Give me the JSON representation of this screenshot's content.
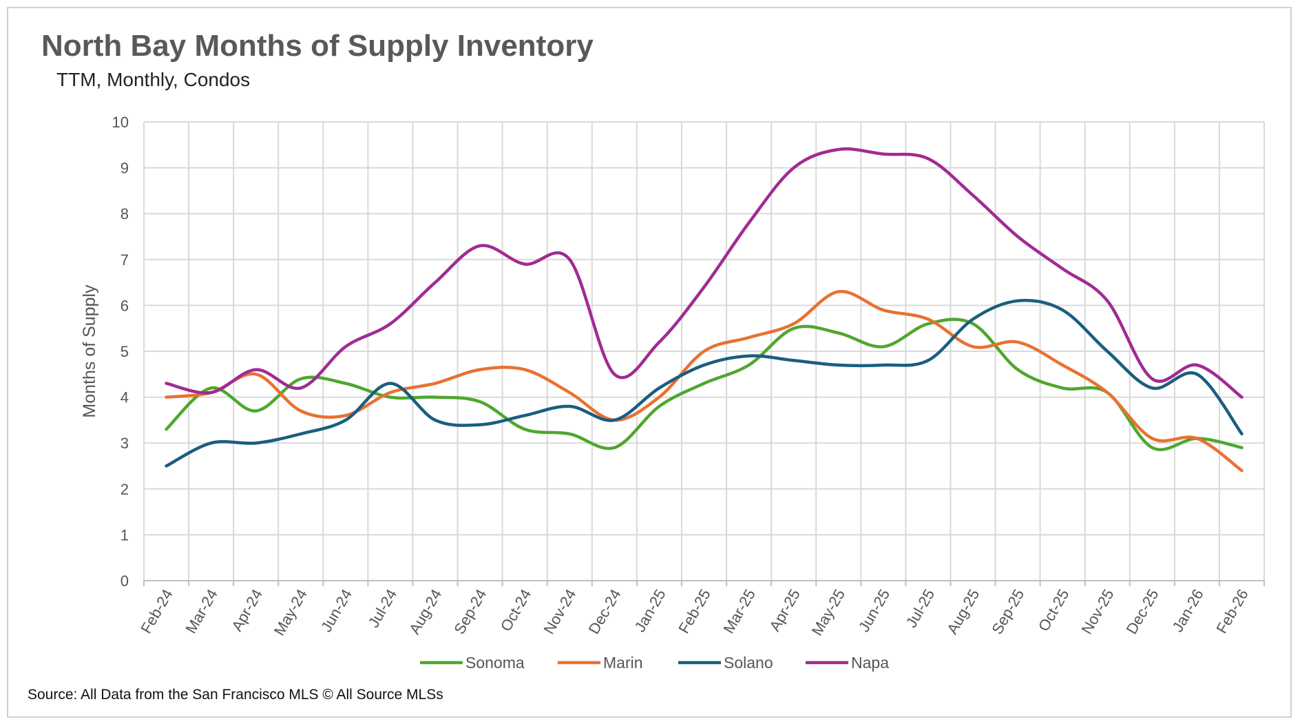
{
  "title": "North Bay Months of Supply Inventory",
  "subtitle": "TTM, Monthly, Condos",
  "source": "Source: All Data from the San Francisco MLS © All Source MLSs",
  "chart_data": {
    "type": "line",
    "ylabel": "Months of Supply",
    "ylim": [
      0,
      10
    ],
    "yticks": [
      "0",
      "1",
      "2",
      "3",
      "4",
      "5",
      "6",
      "7",
      "8",
      "9",
      "10"
    ],
    "grid": true,
    "legend_position": "bottom",
    "categories": [
      "Feb-24",
      "Mar-24",
      "Apr-24",
      "May-24",
      "Jun-24",
      "Jul-24",
      "Aug-24",
      "Sep-24",
      "Oct-24",
      "Nov-24",
      "Dec-24",
      "Jan-25",
      "Feb-25",
      "Mar-25",
      "Apr-25",
      "May-25",
      "Jun-25",
      "Jul-25",
      "Aug-25",
      "Sep-25",
      "Oct-25",
      "Nov-25",
      "Dec-25",
      "Jan-26",
      "Feb-26"
    ],
    "series": [
      {
        "name": "Sonoma",
        "color": "#4EA72E",
        "values": [
          3.3,
          4.2,
          3.7,
          4.4,
          4.3,
          4.0,
          4.0,
          3.9,
          3.3,
          3.2,
          2.9,
          3.8,
          4.3,
          4.7,
          5.5,
          5.4,
          5.1,
          5.6,
          5.6,
          4.6,
          4.2,
          4.1,
          2.9,
          3.1,
          2.9
        ]
      },
      {
        "name": "Marin",
        "color": "#E97132",
        "values": [
          4.0,
          4.1,
          4.5,
          3.7,
          3.6,
          4.1,
          4.3,
          4.6,
          4.6,
          4.1,
          3.5,
          4.0,
          5.0,
          5.3,
          5.6,
          6.3,
          5.9,
          5.7,
          5.1,
          5.2,
          4.7,
          4.1,
          3.1,
          3.1,
          2.4
        ]
      },
      {
        "name": "Solano",
        "color": "#1A5E7E",
        "values": [
          2.5,
          3.0,
          3.0,
          3.2,
          3.5,
          4.3,
          3.5,
          3.4,
          3.6,
          3.8,
          3.5,
          4.2,
          4.7,
          4.9,
          4.8,
          4.7,
          4.7,
          4.8,
          5.7,
          6.1,
          5.9,
          5.0,
          4.2,
          4.5,
          3.2
        ]
      },
      {
        "name": "Napa",
        "color": "#A02B93",
        "values": [
          4.3,
          4.1,
          4.6,
          4.2,
          5.1,
          5.6,
          6.5,
          7.3,
          6.9,
          7.0,
          4.5,
          5.2,
          6.4,
          7.8,
          9.0,
          9.4,
          9.3,
          9.2,
          8.4,
          7.5,
          6.8,
          6.1,
          4.4,
          4.7,
          4.0
        ]
      }
    ]
  }
}
